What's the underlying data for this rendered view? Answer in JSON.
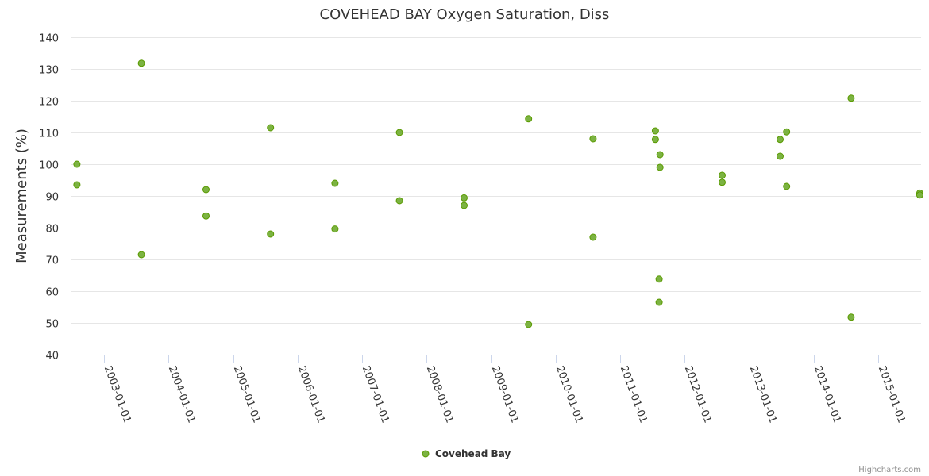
{
  "chart_data": {
    "type": "scatter",
    "title": "COVEHEAD BAY Oxygen Saturation, Diss",
    "xlabel": "",
    "ylabel": "Measurements (%)",
    "ylim": [
      40,
      140
    ],
    "yticks": [
      40,
      50,
      60,
      70,
      80,
      90,
      100,
      110,
      120,
      130,
      140
    ],
    "xlim": [
      "2002-07-01",
      "2015-09-01"
    ],
    "xticks": [
      "2003-01-01",
      "2004-01-01",
      "2005-01-01",
      "2006-01-01",
      "2007-01-01",
      "2008-01-01",
      "2009-01-01",
      "2010-01-01",
      "2011-01-01",
      "2012-01-01",
      "2013-01-01",
      "2014-01-01",
      "2015-01-01"
    ],
    "grid": true,
    "legend": "bottom-center",
    "series": [
      {
        "name": "Covehead Bay",
        "color": "#7cb342",
        "points": [
          {
            "date": "2002-08-01",
            "value": 100.0
          },
          {
            "date": "2002-08-01",
            "value": 93.5
          },
          {
            "date": "2003-08-01",
            "value": 131.8
          },
          {
            "date": "2003-08-01",
            "value": 71.5
          },
          {
            "date": "2004-08-01",
            "value": 92.0
          },
          {
            "date": "2004-08-01",
            "value": 83.7
          },
          {
            "date": "2005-08-01",
            "value": 111.5
          },
          {
            "date": "2005-08-01",
            "value": 78.0
          },
          {
            "date": "2006-08-01",
            "value": 94.0
          },
          {
            "date": "2006-08-01",
            "value": 79.6
          },
          {
            "date": "2007-08-01",
            "value": 110.0
          },
          {
            "date": "2007-08-01",
            "value": 88.5
          },
          {
            "date": "2008-08-01",
            "value": 89.4
          },
          {
            "date": "2008-08-01",
            "value": 87.0
          },
          {
            "date": "2009-08-01",
            "value": 114.3
          },
          {
            "date": "2009-08-01",
            "value": 49.5
          },
          {
            "date": "2010-08-01",
            "value": 108.0
          },
          {
            "date": "2010-08-01",
            "value": 77.0
          },
          {
            "date": "2011-07-20",
            "value": 110.5
          },
          {
            "date": "2011-07-20",
            "value": 107.8
          },
          {
            "date": "2011-08-15",
            "value": 103.0
          },
          {
            "date": "2011-08-15",
            "value": 99.0
          },
          {
            "date": "2011-08-10",
            "value": 63.8
          },
          {
            "date": "2011-08-10",
            "value": 56.5
          },
          {
            "date": "2012-08-01",
            "value": 96.5
          },
          {
            "date": "2012-08-01",
            "value": 94.3
          },
          {
            "date": "2013-06-25",
            "value": 107.8
          },
          {
            "date": "2013-06-25",
            "value": 102.5
          },
          {
            "date": "2013-08-01",
            "value": 110.2
          },
          {
            "date": "2013-08-01",
            "value": 93.0
          },
          {
            "date": "2014-08-01",
            "value": 120.8
          },
          {
            "date": "2014-08-01",
            "value": 51.8
          },
          {
            "date": "2015-08-25",
            "value": 90.9
          },
          {
            "date": "2015-08-25",
            "value": 90.3
          }
        ]
      }
    ]
  },
  "legend": {
    "label": "Covehead Bay"
  },
  "credits": {
    "text": "Highcharts.com"
  }
}
